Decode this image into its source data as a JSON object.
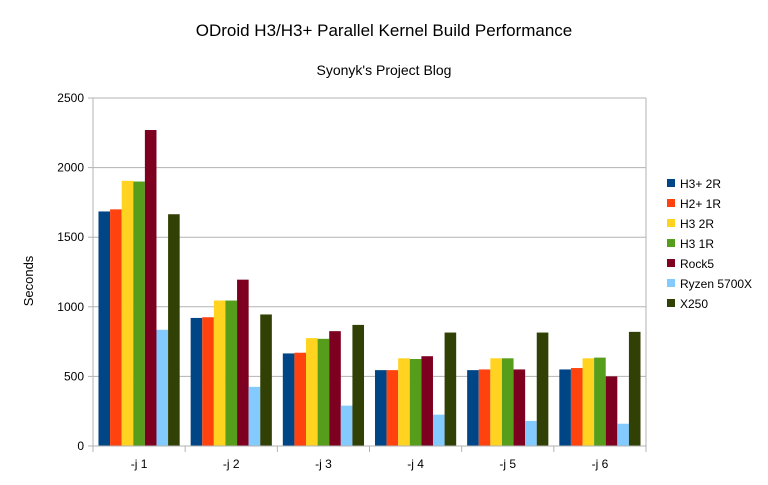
{
  "chart_data": {
    "type": "bar",
    "title": "ODroid H3/H3+ Parallel Kernel Build Performance",
    "subtitle": "Syonyk's Project Blog",
    "xlabel": "",
    "ylabel": "Seconds",
    "ylim": [
      0,
      2500
    ],
    "yticks": [
      0,
      500,
      1000,
      1500,
      2000,
      2500
    ],
    "grid": true,
    "legend_position": "right",
    "categories": [
      "-j 1",
      "-j 2",
      "-j 3",
      "-j 4",
      "-j 5",
      "-j 6"
    ],
    "series": [
      {
        "name": "H3+ 2R",
        "color": "#004586",
        "values": [
          1685,
          920,
          665,
          545,
          545,
          550
        ]
      },
      {
        "name": "H2+ 1R",
        "color": "#ff420e",
        "values": [
          1700,
          925,
          670,
          545,
          550,
          560
        ]
      },
      {
        "name": "H3 2R",
        "color": "#ffd320",
        "values": [
          1905,
          1045,
          775,
          630,
          630,
          630
        ]
      },
      {
        "name": "H3 1R",
        "color": "#579d1c",
        "values": [
          1900,
          1045,
          770,
          625,
          630,
          635
        ]
      },
      {
        "name": "Rock5",
        "color": "#7e0021",
        "values": [
          2270,
          1195,
          825,
          645,
          550,
          500
        ]
      },
      {
        "name": "Ryzen 5700X",
        "color": "#83caff",
        "values": [
          835,
          425,
          290,
          225,
          180,
          160
        ]
      },
      {
        "name": "X250",
        "color": "#314004",
        "values": [
          1665,
          945,
          870,
          815,
          815,
          820
        ]
      }
    ]
  }
}
